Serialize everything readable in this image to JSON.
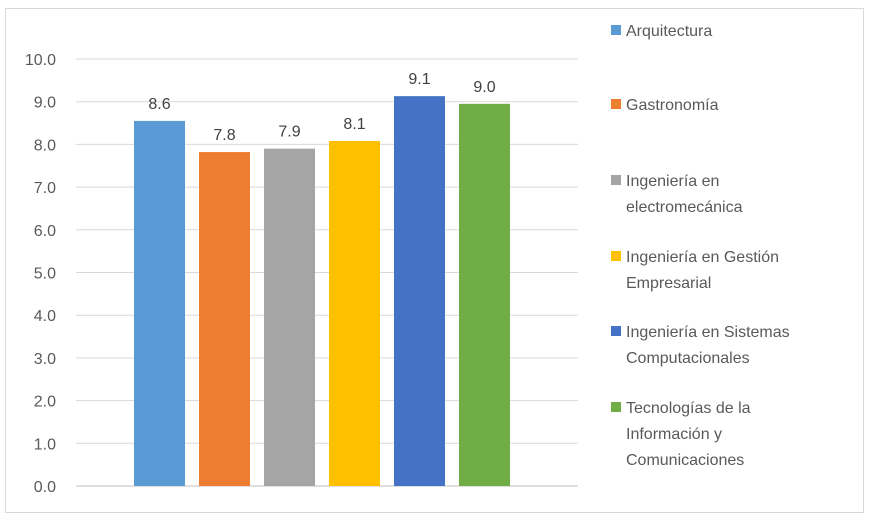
{
  "chart_data": {
    "type": "bar",
    "title": "",
    "xlabel": "",
    "ylabel": "",
    "ylim": [
      0,
      10
    ],
    "yticks": [
      "0.0",
      "1.0",
      "2.0",
      "3.0",
      "4.0",
      "5.0",
      "6.0",
      "7.0",
      "8.0",
      "9.0",
      "10.0"
    ],
    "grid": true,
    "legend_position": "right",
    "series": [
      {
        "name": "Arquitectura",
        "value": 8.55,
        "label": "8.6",
        "color": "#5b9bd5",
        "legend_lines": [
          "Arquitectura"
        ]
      },
      {
        "name": "Gastronomía",
        "value": 7.82,
        "label": "7.8",
        "color": "#ed7d31",
        "legend_lines": [
          "Gastronomía"
        ]
      },
      {
        "name": "Ingeniería en electromecánica",
        "value": 7.9,
        "label": "7.9",
        "color": "#a5a5a5",
        "legend_lines": [
          "Ingeniería en",
          "electromecánica"
        ]
      },
      {
        "name": "Ingeniería en Gestión Empresarial",
        "value": 8.08,
        "label": "8.1",
        "color": "#ffc000",
        "legend_lines": [
          "Ingeniería en Gestión",
          "Empresarial"
        ]
      },
      {
        "name": "Ingeniería en Sistemas Computacionales",
        "value": 9.13,
        "label": "9.1",
        "color": "#4472c4",
        "legend_lines": [
          "Ingeniería en Sistemas",
          "Computacionales"
        ]
      },
      {
        "name": "Tecnologías de la Información y Comunicaciones",
        "value": 8.95,
        "label": "9.0",
        "color": "#70ad47",
        "legend_lines": [
          "Tecnologías de la",
          "Información y",
          "Comunicaciones"
        ]
      }
    ]
  }
}
